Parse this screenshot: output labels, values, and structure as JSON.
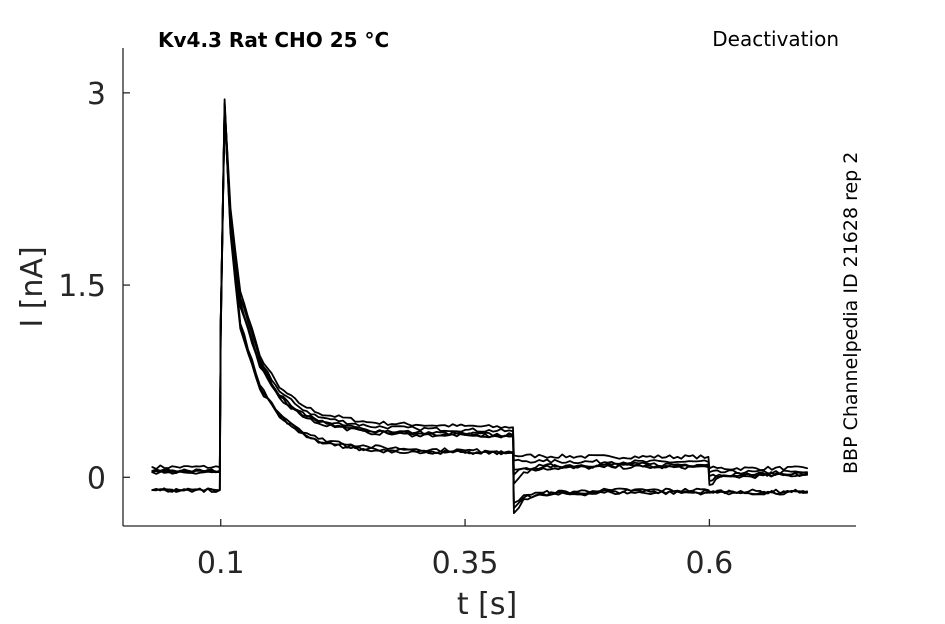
{
  "chart_data": {
    "type": "line",
    "title": "Kv4.3  Rat  CHO  25 °C",
    "protocol_label": "Deactivation",
    "side_label": "BBP Channelpedia ID 21628 rep 2",
    "xlabel": "t [s]",
    "ylabel": "I [nA]",
    "xlim": [
      0.0,
      0.75
    ],
    "ylim": [
      -0.38,
      3.35
    ],
    "x_ticks": [
      0.1,
      0.35,
      0.6
    ],
    "x_tick_labels": [
      "0.1",
      "0.35",
      "0.6"
    ],
    "y_ticks": [
      0,
      1.5,
      3
    ],
    "y_tick_labels": [
      "0",
      "1.5",
      "3"
    ],
    "grid": false,
    "line_color": "#000000",
    "series": [
      {
        "values": [
          [
            0.03,
            0.08
          ],
          [
            0.099,
            0.08
          ],
          [
            0.1,
            1.2
          ],
          [
            0.104,
            2.9
          ],
          [
            0.11,
            2.1
          ],
          [
            0.12,
            1.45
          ],
          [
            0.14,
            0.95
          ],
          [
            0.16,
            0.7
          ],
          [
            0.18,
            0.58
          ],
          [
            0.2,
            0.5
          ],
          [
            0.25,
            0.43
          ],
          [
            0.3,
            0.41
          ],
          [
            0.35,
            0.4
          ],
          [
            0.399,
            0.39
          ],
          [
            0.4,
            0.17
          ],
          [
            0.43,
            0.165
          ],
          [
            0.5,
            0.16
          ],
          [
            0.599,
            0.16
          ],
          [
            0.6,
            0.07
          ],
          [
            0.7,
            0.07
          ]
        ]
      },
      {
        "values": [
          [
            0.03,
            0.05
          ],
          [
            0.099,
            0.05
          ],
          [
            0.1,
            1.2
          ],
          [
            0.104,
            2.92
          ],
          [
            0.11,
            2.05
          ],
          [
            0.12,
            1.4
          ],
          [
            0.14,
            0.92
          ],
          [
            0.16,
            0.67
          ],
          [
            0.18,
            0.55
          ],
          [
            0.2,
            0.47
          ],
          [
            0.25,
            0.4
          ],
          [
            0.3,
            0.38
          ],
          [
            0.35,
            0.37
          ],
          [
            0.399,
            0.36
          ],
          [
            0.4,
            0.13
          ],
          [
            0.43,
            0.125
          ],
          [
            0.5,
            0.12
          ],
          [
            0.599,
            0.12
          ],
          [
            0.6,
            0.04
          ],
          [
            0.7,
            0.04
          ]
        ]
      },
      {
        "values": [
          [
            0.03,
            0.05
          ],
          [
            0.099,
            0.05
          ],
          [
            0.1,
            1.2
          ],
          [
            0.104,
            2.88
          ],
          [
            0.11,
            2.02
          ],
          [
            0.12,
            1.37
          ],
          [
            0.14,
            0.89
          ],
          [
            0.16,
            0.64
          ],
          [
            0.18,
            0.52
          ],
          [
            0.2,
            0.44
          ],
          [
            0.25,
            0.37
          ],
          [
            0.3,
            0.35
          ],
          [
            0.35,
            0.34
          ],
          [
            0.399,
            0.33
          ],
          [
            0.4,
            0.02
          ],
          [
            0.41,
            0.07
          ],
          [
            0.43,
            0.09
          ],
          [
            0.5,
            0.1
          ],
          [
            0.599,
            0.1
          ],
          [
            0.6,
            -0.03
          ],
          [
            0.61,
            0.02
          ],
          [
            0.7,
            0.03
          ]
        ]
      },
      {
        "values": [
          [
            0.03,
            0.04
          ],
          [
            0.099,
            0.04
          ],
          [
            0.1,
            1.2
          ],
          [
            0.104,
            2.85
          ],
          [
            0.11,
            2.0
          ],
          [
            0.12,
            1.35
          ],
          [
            0.14,
            0.87
          ],
          [
            0.16,
            0.63
          ],
          [
            0.18,
            0.51
          ],
          [
            0.2,
            0.43
          ],
          [
            0.25,
            0.36
          ],
          [
            0.3,
            0.34
          ],
          [
            0.35,
            0.33
          ],
          [
            0.399,
            0.32
          ],
          [
            0.4,
            -0.05
          ],
          [
            0.41,
            0.04
          ],
          [
            0.43,
            0.07
          ],
          [
            0.5,
            0.08
          ],
          [
            0.599,
            0.08
          ],
          [
            0.6,
            -0.06
          ],
          [
            0.61,
            0.0
          ],
          [
            0.7,
            0.02
          ]
        ]
      },
      {
        "values": [
          [
            0.03,
            0.04
          ],
          [
            0.099,
            0.04
          ],
          [
            0.1,
            1.2
          ],
          [
            0.104,
            2.83
          ],
          [
            0.11,
            1.98
          ],
          [
            0.12,
            1.33
          ],
          [
            0.14,
            0.86
          ],
          [
            0.16,
            0.62
          ],
          [
            0.18,
            0.5
          ],
          [
            0.2,
            0.42
          ],
          [
            0.25,
            0.35
          ],
          [
            0.3,
            0.33
          ],
          [
            0.35,
            0.33
          ],
          [
            0.399,
            0.32
          ],
          [
            0.4,
            0.06
          ],
          [
            0.43,
            0.08
          ],
          [
            0.5,
            0.09
          ],
          [
            0.599,
            0.09
          ],
          [
            0.6,
            0.01
          ],
          [
            0.7,
            0.02
          ]
        ]
      },
      {
        "values": [
          [
            0.03,
            -0.1
          ],
          [
            0.099,
            -0.1
          ],
          [
            0.1,
            1.1
          ],
          [
            0.104,
            2.95
          ],
          [
            0.11,
            1.95
          ],
          [
            0.12,
            1.2
          ],
          [
            0.14,
            0.72
          ],
          [
            0.16,
            0.5
          ],
          [
            0.18,
            0.38
          ],
          [
            0.2,
            0.3
          ],
          [
            0.25,
            0.24
          ],
          [
            0.3,
            0.22
          ],
          [
            0.35,
            0.21
          ],
          [
            0.399,
            0.2
          ],
          [
            0.4,
            -0.24
          ],
          [
            0.41,
            -0.16
          ],
          [
            0.43,
            -0.13
          ],
          [
            0.5,
            -0.11
          ],
          [
            0.599,
            -0.11
          ],
          [
            0.6,
            -0.12
          ],
          [
            0.7,
            -0.12
          ]
        ]
      },
      {
        "values": [
          [
            0.03,
            -0.1
          ],
          [
            0.099,
            -0.1
          ],
          [
            0.1,
            1.1
          ],
          [
            0.104,
            2.9
          ],
          [
            0.11,
            1.92
          ],
          [
            0.12,
            1.18
          ],
          [
            0.14,
            0.7
          ],
          [
            0.16,
            0.48
          ],
          [
            0.18,
            0.36
          ],
          [
            0.2,
            0.28
          ],
          [
            0.25,
            0.22
          ],
          [
            0.3,
            0.2
          ],
          [
            0.35,
            0.2
          ],
          [
            0.399,
            0.19
          ],
          [
            0.4,
            -0.2
          ],
          [
            0.41,
            -0.14
          ],
          [
            0.43,
            -0.12
          ],
          [
            0.5,
            -0.1
          ],
          [
            0.599,
            -0.1
          ],
          [
            0.6,
            -0.11
          ],
          [
            0.7,
            -0.11
          ]
        ]
      },
      {
        "values": [
          [
            0.03,
            -0.1
          ],
          [
            0.099,
            -0.1
          ],
          [
            0.1,
            1.1
          ],
          [
            0.104,
            2.87
          ],
          [
            0.11,
            1.9
          ],
          [
            0.12,
            1.16
          ],
          [
            0.14,
            0.69
          ],
          [
            0.16,
            0.47
          ],
          [
            0.18,
            0.35
          ],
          [
            0.2,
            0.27
          ],
          [
            0.25,
            0.21
          ],
          [
            0.3,
            0.2
          ],
          [
            0.35,
            0.19
          ],
          [
            0.399,
            0.19
          ],
          [
            0.4,
            -0.28
          ],
          [
            0.41,
            -0.17
          ],
          [
            0.43,
            -0.14
          ],
          [
            0.5,
            -0.12
          ],
          [
            0.599,
            -0.12
          ],
          [
            0.6,
            -0.12
          ],
          [
            0.7,
            -0.12
          ]
        ]
      }
    ]
  }
}
